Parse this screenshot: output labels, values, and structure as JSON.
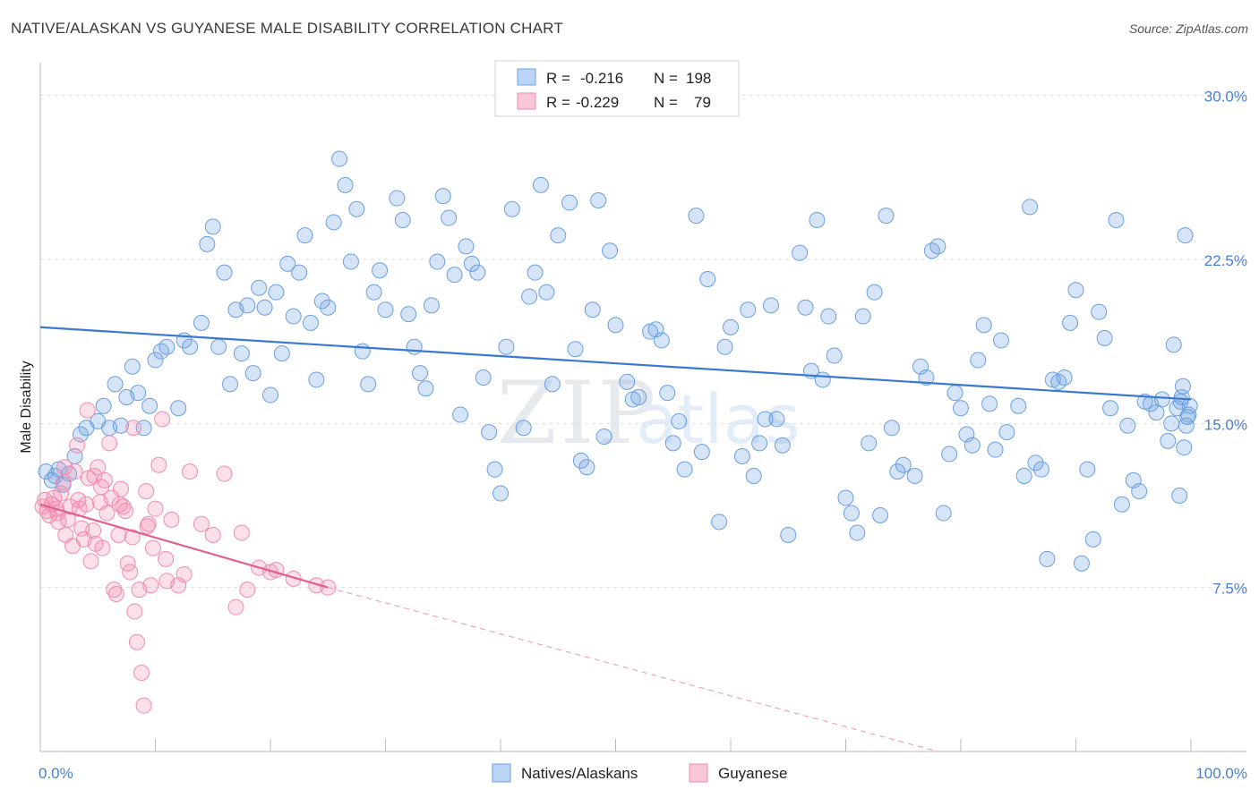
{
  "header": {
    "title": "NATIVE/ALASKAN VS GUYANESE MALE DISABILITY CORRELATION CHART",
    "source": "Source: ZipAtlas.com"
  },
  "watermark": {
    "zip": "ZIP",
    "atlas": "atlas"
  },
  "stats_legend": {
    "rows": [
      {
        "r_label": "R =",
        "r_value": "-0.216",
        "n_label": "N =",
        "n_value": "198",
        "color": "#6a9fe0"
      },
      {
        "r_label": "R =",
        "r_value": "-0.229",
        "n_label": "N =",
        "n_value": "79",
        "color": "#f08cb0"
      }
    ]
  },
  "bottom_legend": {
    "items": [
      {
        "label": "Natives/Alaskans",
        "color": "#6a9fe0"
      },
      {
        "label": "Guyanese",
        "color": "#f08cb0"
      }
    ]
  },
  "chart_data": {
    "type": "scatter",
    "title": "NATIVE/ALASKAN VS GUYANESE MALE DISABILITY CORRELATION CHART",
    "xlabel": "",
    "ylabel": "Male Disability",
    "xlim": [
      0,
      100
    ],
    "ylim": [
      0,
      31.5
    ],
    "x_tick_labels": [
      "0.0%",
      "100.0%"
    ],
    "y_ticks": [
      7.5,
      15.0,
      22.5,
      30.0
    ],
    "y_tick_labels": [
      "7.5%",
      "15.0%",
      "22.5%",
      "30.0%"
    ],
    "grid": true,
    "series": [
      {
        "name": "Natives/Alaskans",
        "color": "#6a9fe0",
        "trend": {
          "x0": 0,
          "y0": 19.4,
          "x1": 100,
          "y1": 16.1
        },
        "points": [
          [
            0.5,
            12.8
          ],
          [
            1.0,
            12.4
          ],
          [
            1.3,
            12.6
          ],
          [
            1.6,
            12.9
          ],
          [
            2.0,
            12.2
          ],
          [
            2.5,
            12.7
          ],
          [
            3.0,
            13.5
          ],
          [
            3.5,
            14.5
          ],
          [
            4.0,
            14.8
          ],
          [
            5.0,
            15.1
          ],
          [
            5.5,
            15.8
          ],
          [
            6.0,
            14.8
          ],
          [
            6.5,
            16.8
          ],
          [
            7.0,
            14.9
          ],
          [
            7.5,
            16.2
          ],
          [
            8.0,
            17.6
          ],
          [
            8.5,
            16.4
          ],
          [
            9.0,
            14.8
          ],
          [
            9.5,
            15.8
          ],
          [
            10.0,
            17.9
          ],
          [
            10.5,
            18.3
          ],
          [
            11.0,
            18.5
          ],
          [
            12.0,
            15.7
          ],
          [
            12.5,
            18.8
          ],
          [
            13.0,
            18.5
          ],
          [
            14.0,
            19.6
          ],
          [
            14.5,
            23.2
          ],
          [
            15.0,
            24.0
          ],
          [
            15.5,
            18.5
          ],
          [
            16.0,
            21.9
          ],
          [
            16.5,
            16.8
          ],
          [
            17.0,
            20.2
          ],
          [
            17.5,
            18.2
          ],
          [
            18.0,
            20.4
          ],
          [
            18.5,
            17.3
          ],
          [
            19.0,
            21.2
          ],
          [
            19.5,
            20.3
          ],
          [
            20.0,
            16.3
          ],
          [
            20.5,
            21.0
          ],
          [
            21.0,
            18.2
          ],
          [
            21.5,
            22.3
          ],
          [
            22.0,
            19.9
          ],
          [
            22.5,
            21.9
          ],
          [
            23.0,
            23.6
          ],
          [
            23.5,
            19.6
          ],
          [
            24.0,
            17.0
          ],
          [
            24.5,
            20.6
          ],
          [
            25.0,
            20.3
          ],
          [
            25.5,
            24.2
          ],
          [
            26.0,
            27.1
          ],
          [
            26.5,
            25.9
          ],
          [
            27.0,
            22.4
          ],
          [
            27.5,
            24.8
          ],
          [
            28.0,
            18.3
          ],
          [
            28.5,
            16.8
          ],
          [
            29.0,
            21.0
          ],
          [
            29.5,
            22.0
          ],
          [
            30.0,
            20.2
          ],
          [
            31.0,
            25.3
          ],
          [
            31.5,
            24.3
          ],
          [
            32.0,
            20.0
          ],
          [
            32.5,
            18.5
          ],
          [
            33.0,
            17.3
          ],
          [
            33.5,
            16.6
          ],
          [
            34.0,
            20.4
          ],
          [
            34.5,
            22.4
          ],
          [
            35.0,
            25.4
          ],
          [
            35.5,
            24.4
          ],
          [
            36.0,
            21.8
          ],
          [
            36.5,
            15.4
          ],
          [
            37.0,
            23.1
          ],
          [
            37.5,
            22.3
          ],
          [
            38.0,
            21.9
          ],
          [
            38.5,
            17.1
          ],
          [
            39.0,
            14.6
          ],
          [
            39.5,
            12.9
          ],
          [
            40.0,
            11.8
          ],
          [
            40.5,
            18.5
          ],
          [
            41.0,
            24.8
          ],
          [
            42.0,
            14.8
          ],
          [
            42.5,
            20.8
          ],
          [
            43.0,
            21.9
          ],
          [
            43.5,
            25.9
          ],
          [
            44.0,
            21.0
          ],
          [
            44.5,
            16.8
          ],
          [
            45.0,
            23.6
          ],
          [
            46.0,
            25.1
          ],
          [
            46.5,
            18.4
          ],
          [
            47.0,
            13.3
          ],
          [
            47.5,
            13.0
          ],
          [
            48.0,
            20.2
          ],
          [
            48.5,
            25.2
          ],
          [
            49.0,
            14.4
          ],
          [
            49.5,
            22.9
          ],
          [
            50.0,
            19.5
          ],
          [
            51.0,
            16.9
          ],
          [
            51.5,
            16.1
          ],
          [
            52.0,
            16.2
          ],
          [
            53.0,
            19.2
          ],
          [
            53.5,
            19.3
          ],
          [
            54.0,
            18.8
          ],
          [
            54.5,
            16.4
          ],
          [
            55.0,
            14.1
          ],
          [
            55.5,
            15.1
          ],
          [
            56.0,
            12.9
          ],
          [
            57.0,
            24.5
          ],
          [
            57.5,
            13.7
          ],
          [
            58.0,
            21.6
          ],
          [
            59.0,
            10.5
          ],
          [
            59.5,
            18.5
          ],
          [
            60.0,
            19.4
          ],
          [
            61.0,
            13.5
          ],
          [
            61.5,
            20.2
          ],
          [
            62.0,
            12.6
          ],
          [
            62.5,
            14.1
          ],
          [
            63.0,
            15.2
          ],
          [
            63.5,
            20.4
          ],
          [
            64.0,
            15.2
          ],
          [
            64.5,
            14.0
          ],
          [
            65.0,
            9.9
          ],
          [
            66.0,
            22.8
          ],
          [
            66.5,
            20.3
          ],
          [
            67.0,
            17.4
          ],
          [
            67.5,
            24.3
          ],
          [
            68.0,
            17.0
          ],
          [
            68.5,
            19.9
          ],
          [
            69.0,
            18.1
          ],
          [
            70.0,
            11.6
          ],
          [
            70.5,
            10.9
          ],
          [
            71.0,
            10.0
          ],
          [
            71.5,
            19.9
          ],
          [
            72.0,
            14.1
          ],
          [
            72.5,
            21.0
          ],
          [
            73.0,
            10.8
          ],
          [
            73.5,
            24.5
          ],
          [
            74.0,
            14.8
          ],
          [
            74.5,
            12.8
          ],
          [
            75.0,
            13.1
          ],
          [
            76.0,
            12.6
          ],
          [
            76.5,
            17.6
          ],
          [
            77.0,
            17.1
          ],
          [
            77.5,
            22.9
          ],
          [
            78.0,
            23.1
          ],
          [
            78.5,
            10.9
          ],
          [
            79.0,
            13.6
          ],
          [
            79.5,
            16.4
          ],
          [
            80.0,
            15.7
          ],
          [
            80.5,
            14.5
          ],
          [
            81.0,
            14.0
          ],
          [
            81.5,
            17.9
          ],
          [
            82.0,
            19.5
          ],
          [
            82.5,
            15.9
          ],
          [
            83.0,
            13.8
          ],
          [
            83.5,
            18.8
          ],
          [
            84.0,
            14.6
          ],
          [
            85.0,
            15.8
          ],
          [
            85.5,
            12.6
          ],
          [
            86.0,
            24.9
          ],
          [
            86.5,
            13.2
          ],
          [
            87.0,
            12.9
          ],
          [
            87.5,
            8.8
          ],
          [
            88.0,
            17.0
          ],
          [
            88.5,
            16.9
          ],
          [
            89.0,
            17.1
          ],
          [
            89.5,
            19.6
          ],
          [
            90.0,
            21.1
          ],
          [
            90.5,
            8.6
          ],
          [
            91.0,
            12.9
          ],
          [
            91.5,
            9.7
          ],
          [
            92.0,
            20.1
          ],
          [
            92.5,
            18.9
          ],
          [
            93.0,
            15.7
          ],
          [
            93.5,
            24.3
          ],
          [
            94.0,
            11.3
          ],
          [
            94.5,
            14.9
          ],
          [
            95.0,
            12.4
          ],
          [
            95.5,
            11.9
          ],
          [
            96.0,
            16.0
          ],
          [
            96.5,
            15.9
          ],
          [
            97.0,
            15.5
          ],
          [
            97.5,
            16.1
          ],
          [
            98.0,
            14.2
          ],
          [
            98.5,
            18.6
          ],
          [
            99.0,
            11.7
          ],
          [
            99.5,
            23.6
          ],
          [
            99.8,
            15.4
          ],
          [
            99.6,
            14.9
          ],
          [
            99.4,
            13.9
          ],
          [
            99.7,
            15.3
          ],
          [
            99.9,
            15.8
          ],
          [
            99.2,
            16.2
          ],
          [
            99.3,
            16.7
          ],
          [
            99.1,
            16.0
          ],
          [
            98.8,
            15.7
          ],
          [
            98.3,
            15.0
          ]
        ]
      },
      {
        "name": "Guyanese",
        "color": "#f08cb0",
        "trend": {
          "x0": 0,
          "y0": 11.3,
          "x1": 25,
          "y1": 7.5
        },
        "trend_extension": {
          "x0": 25,
          "y0": 7.5,
          "x1": 78,
          "y1": 0
        },
        "points": [
          [
            0.2,
            11.2
          ],
          [
            0.4,
            11.5
          ],
          [
            0.6,
            11.0
          ],
          [
            0.8,
            10.8
          ],
          [
            1.0,
            11.3
          ],
          [
            1.2,
            11.6
          ],
          [
            1.4,
            11.1
          ],
          [
            1.6,
            10.5
          ],
          [
            1.8,
            11.8
          ],
          [
            2.0,
            12.3
          ],
          [
            2.2,
            9.9
          ],
          [
            2.4,
            10.6
          ],
          [
            2.6,
            11.2
          ],
          [
            2.8,
            9.4
          ],
          [
            3.0,
            12.8
          ],
          [
            3.2,
            14.0
          ],
          [
            3.4,
            11.1
          ],
          [
            3.6,
            10.2
          ],
          [
            3.8,
            9.7
          ],
          [
            4.0,
            11.3
          ],
          [
            4.2,
            12.5
          ],
          [
            4.4,
            8.7
          ],
          [
            4.6,
            10.1
          ],
          [
            4.8,
            9.5
          ],
          [
            5.0,
            13.0
          ],
          [
            5.2,
            11.4
          ],
          [
            5.4,
            9.3
          ],
          [
            5.6,
            12.4
          ],
          [
            5.8,
            10.9
          ],
          [
            6.0,
            14.1
          ],
          [
            6.2,
            11.6
          ],
          [
            6.4,
            7.4
          ],
          [
            6.6,
            7.2
          ],
          [
            6.8,
            9.9
          ],
          [
            7.0,
            12.0
          ],
          [
            7.2,
            11.2
          ],
          [
            7.4,
            11.0
          ],
          [
            7.6,
            8.6
          ],
          [
            7.8,
            8.2
          ],
          [
            8.0,
            9.8
          ],
          [
            8.2,
            6.4
          ],
          [
            8.4,
            5.0
          ],
          [
            8.6,
            7.4
          ],
          [
            8.8,
            3.6
          ],
          [
            9.0,
            2.1
          ],
          [
            9.2,
            11.9
          ],
          [
            9.4,
            10.4
          ],
          [
            9.6,
            7.6
          ],
          [
            9.8,
            9.3
          ],
          [
            10.0,
            11.1
          ],
          [
            10.3,
            13.1
          ],
          [
            10.6,
            15.2
          ],
          [
            11.0,
            7.8
          ],
          [
            11.4,
            10.6
          ],
          [
            12.0,
            7.6
          ],
          [
            12.5,
            8.1
          ],
          [
            13.0,
            12.8
          ],
          [
            14.0,
            10.4
          ],
          [
            15.0,
            9.9
          ],
          [
            16.0,
            12.7
          ],
          [
            17.0,
            6.6
          ],
          [
            17.5,
            10.0
          ],
          [
            18.0,
            7.4
          ],
          [
            19.0,
            8.4
          ],
          [
            20.0,
            8.2
          ],
          [
            20.5,
            8.3
          ],
          [
            22.0,
            7.9
          ],
          [
            24.0,
            7.6
          ],
          [
            25.0,
            7.5
          ],
          [
            4.1,
            15.6
          ],
          [
            3.3,
            11.5
          ],
          [
            2.1,
            13.0
          ],
          [
            1.5,
            10.9
          ],
          [
            5.3,
            12.1
          ],
          [
            6.9,
            11.3
          ],
          [
            8.1,
            14.8
          ],
          [
            9.3,
            10.3
          ],
          [
            10.9,
            8.8
          ],
          [
            4.7,
            12.6
          ]
        ]
      }
    ]
  }
}
